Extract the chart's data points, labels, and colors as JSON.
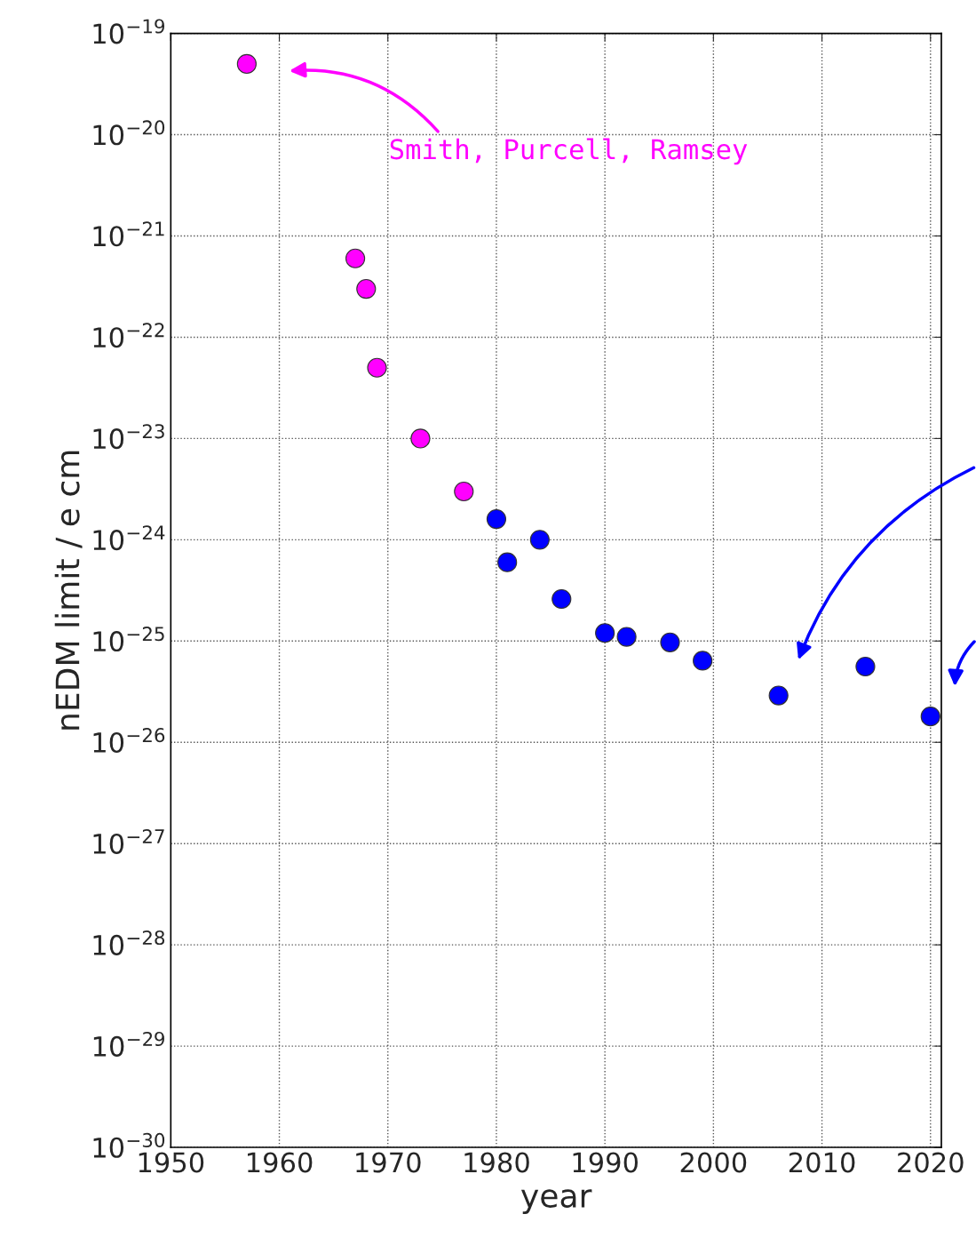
{
  "chart_data": {
    "type": "scatter",
    "xlabel": "year",
    "ylabel": "nEDM limit / e cm",
    "log": "y",
    "grid": true,
    "marker": "circle",
    "series": [
      {
        "color": "#ff00ff",
        "x": [
          1957,
          1967,
          1968,
          1969,
          1973,
          1977
        ],
        "values": [
          5e-20,
          6e-22,
          3e-22,
          5e-23,
          1e-23,
          3e-24
        ]
      },
      {
        "color": "#0000ff",
        "x": [
          1980,
          1981,
          1984,
          1986,
          1990,
          1992,
          1996,
          1999,
          2006,
          2014,
          2020
        ],
        "values": [
          1.6e-24,
          6e-25,
          1e-24,
          2.6e-25,
          1.2e-25,
          1.1e-25,
          9.7e-26,
          6.4e-26,
          2.9e-26,
          5.6e-26,
          1.8e-26
        ]
      }
    ],
    "xlim": [
      1950,
      2021
    ],
    "xticks": [
      1950,
      1960,
      1970,
      1980,
      1990,
      2000,
      2010,
      2020
    ],
    "ylim": [
      1e-30,
      1e-19
    ],
    "yticks": [
      {
        "value": 1e-30,
        "label": "10$^{−30}$"
      },
      {
        "value": 1e-29,
        "label": "10$^{−29}$"
      },
      {
        "value": 1e-28,
        "label": "10$^{−28}$"
      },
      {
        "value": 1e-27,
        "label": "10$^{−27}$"
      },
      {
        "value": 1e-26,
        "label": "10$^{−26}$"
      },
      {
        "value": 1e-25,
        "label": "10$^{−25}$"
      },
      {
        "value": 1e-24,
        "label": "10$^{−24}$"
      },
      {
        "value": 1e-23,
        "label": "10$^{−23}$"
      },
      {
        "value": 1e-22,
        "label": "10$^{−22}$"
      },
      {
        "value": 1e-21,
        "label": "10$^{−21}$"
      },
      {
        "value": 1e-20,
        "label": "10$^{−20}$"
      },
      {
        "value": 1e-19,
        "label": "10$^{−19}$"
      }
    ],
    "annotations": [
      "Smith, Purcell, Ramsey"
    ]
  }
}
